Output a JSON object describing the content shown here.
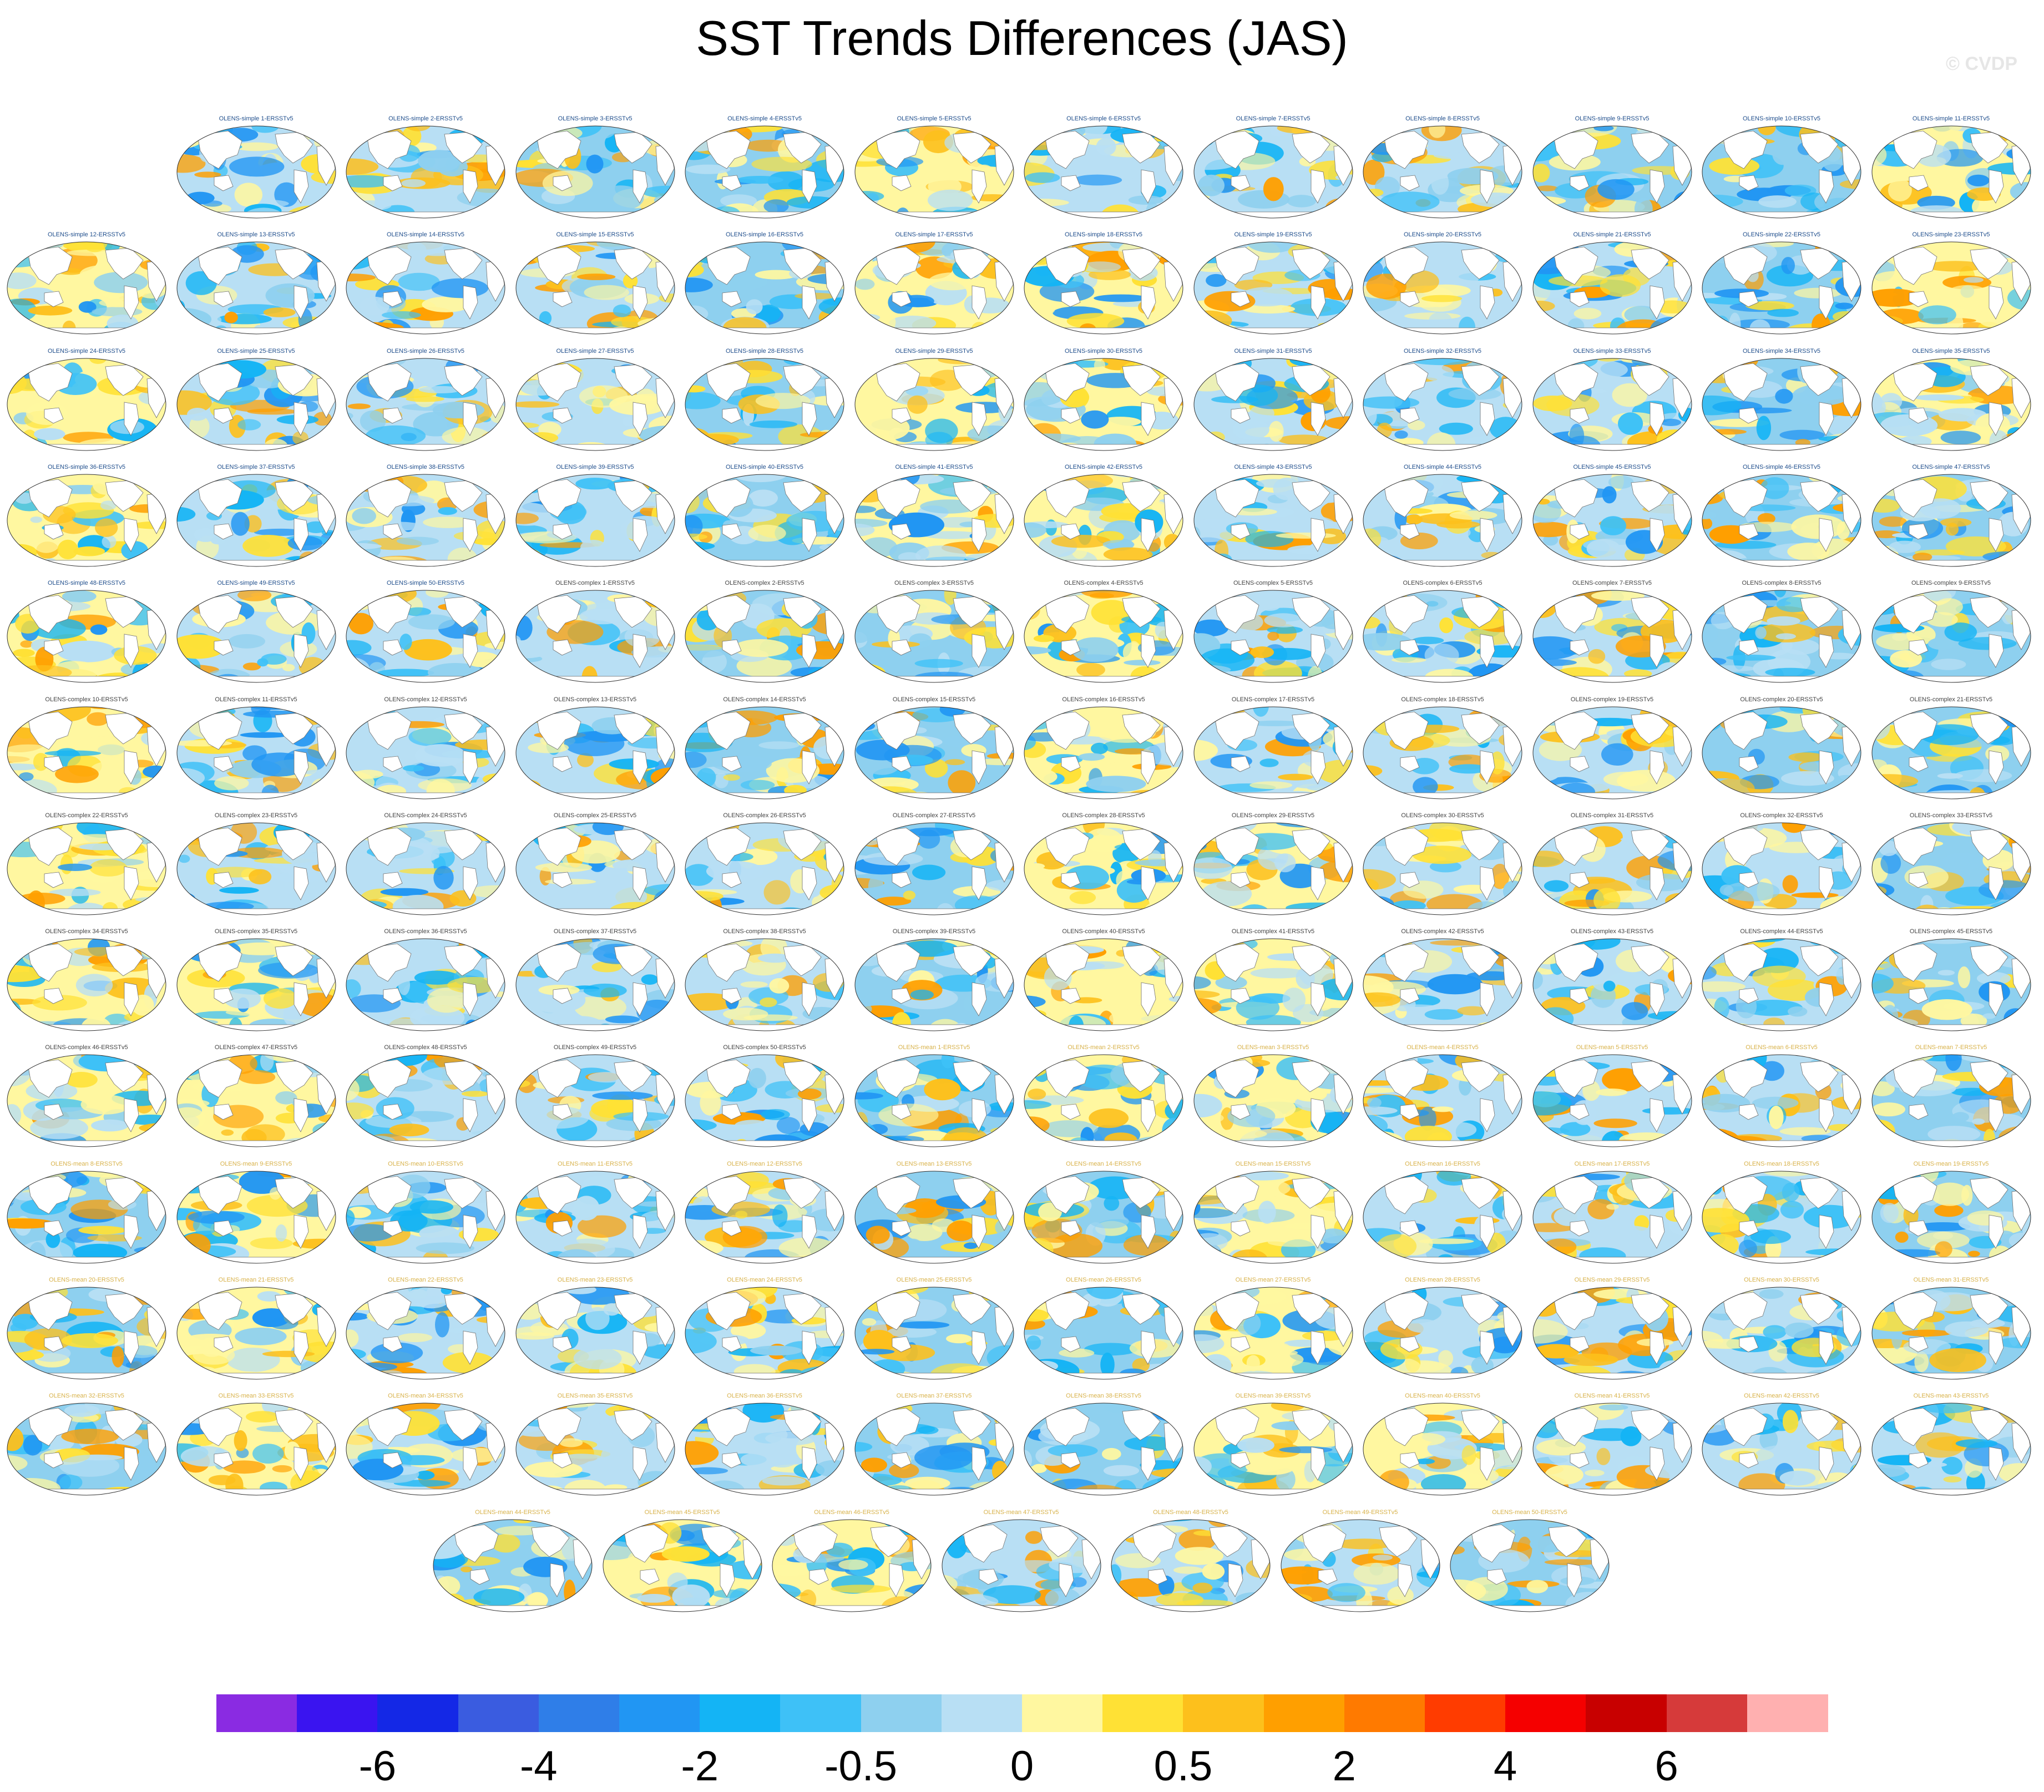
{
  "title": "SST Trends Differences (JAS)",
  "watermark": "© CVDP",
  "colors": {
    "simple_title": "#1f4e8c",
    "complex_title": "#444444",
    "mean_title": "#d8b24a",
    "land": "#ffffff",
    "coast": "#707070"
  },
  "chart_data": {
    "type": "heatmap",
    "description_type": "panel grid of global SST trend difference maps",
    "title": "SST Trends Differences (JAS)",
    "panel_groups": [
      {
        "name": "OLENS-simple",
        "count": 50,
        "suffix": "ERSSTv5"
      },
      {
        "name": "OLENS-complex",
        "count": 50,
        "suffix": "ERSSTv5"
      },
      {
        "name": "OLENS-mean",
        "count": 50,
        "suffix": "ERSSTv5"
      }
    ],
    "panel_titles": [
      "OLENS-simple 1-ERSSTv5",
      "OLENS-simple 2-ERSSTv5",
      "OLENS-simple 3-ERSSTv5",
      "OLENS-simple 4-ERSSTv5",
      "OLENS-simple 5-ERSSTv5",
      "OLENS-simple 6-ERSSTv5",
      "OLENS-simple 7-ERSSTv5",
      "OLENS-simple 8-ERSSTv5",
      "OLENS-simple 9-ERSSTv5",
      "OLENS-simple 10-ERSSTv5",
      "OLENS-simple 11-ERSSTv5",
      "OLENS-simple 12-ERSSTv5",
      "OLENS-simple 13-ERSSTv5",
      "OLENS-simple 14-ERSSTv5",
      "OLENS-simple 15-ERSSTv5",
      "OLENS-simple 16-ERSSTv5",
      "OLENS-simple 17-ERSSTv5",
      "OLENS-simple 18-ERSSTv5",
      "OLENS-simple 19-ERSSTv5",
      "OLENS-simple 20-ERSSTv5",
      "OLENS-simple 21-ERSSTv5",
      "OLENS-simple 22-ERSSTv5",
      "OLENS-simple 23-ERSSTv5",
      "OLENS-simple 24-ERSSTv5",
      "OLENS-simple 25-ERSSTv5",
      "OLENS-simple 26-ERSSTv5",
      "OLENS-simple 27-ERSSTv5",
      "OLENS-simple 28-ERSSTv5",
      "OLENS-simple 29-ERSSTv5",
      "OLENS-simple 30-ERSSTv5",
      "OLENS-simple 31-ERSSTv5",
      "OLENS-simple 32-ERSSTv5",
      "OLENS-simple 33-ERSSTv5",
      "OLENS-simple 34-ERSSTv5",
      "OLENS-simple 35-ERSSTv5",
      "OLENS-simple 36-ERSSTv5",
      "OLENS-simple 37-ERSSTv5",
      "OLENS-simple 38-ERSSTv5",
      "OLENS-simple 39-ERSSTv5",
      "OLENS-simple 40-ERSSTv5",
      "OLENS-simple 41-ERSSTv5",
      "OLENS-simple 42-ERSSTv5",
      "OLENS-simple 43-ERSSTv5",
      "OLENS-simple 44-ERSSTv5",
      "OLENS-simple 45-ERSSTv5",
      "OLENS-simple 46-ERSSTv5",
      "OLENS-simple 47-ERSSTv5",
      "OLENS-simple 48-ERSSTv5",
      "OLENS-simple 49-ERSSTv5",
      "OLENS-simple 50-ERSSTv5",
      "OLENS-complex 1-ERSSTv5",
      "OLENS-complex 2-ERSSTv5",
      "OLENS-complex 3-ERSSTv5",
      "OLENS-complex 4-ERSSTv5",
      "OLENS-complex 5-ERSSTv5",
      "OLENS-complex 6-ERSSTv5",
      "OLENS-complex 7-ERSSTv5",
      "OLENS-complex 8-ERSSTv5",
      "OLENS-complex 9-ERSSTv5",
      "OLENS-complex 10-ERSSTv5",
      "OLENS-complex 11-ERSSTv5",
      "OLENS-complex 12-ERSSTv5",
      "OLENS-complex 13-ERSSTv5",
      "OLENS-complex 14-ERSSTv5",
      "OLENS-complex 15-ERSSTv5",
      "OLENS-complex 16-ERSSTv5",
      "OLENS-complex 17-ERSSTv5",
      "OLENS-complex 18-ERSSTv5",
      "OLENS-complex 19-ERSSTv5",
      "OLENS-complex 20-ERSSTv5",
      "OLENS-complex 21-ERSSTv5",
      "OLENS-complex 22-ERSSTv5",
      "OLENS-complex 23-ERSSTv5",
      "OLENS-complex 24-ERSSTv5",
      "OLENS-complex 25-ERSSTv5",
      "OLENS-complex 26-ERSSTv5",
      "OLENS-complex 27-ERSSTv5",
      "OLENS-complex 28-ERSSTv5",
      "OLENS-complex 29-ERSSTv5",
      "OLENS-complex 30-ERSSTv5",
      "OLENS-complex 31-ERSSTv5",
      "OLENS-complex 32-ERSSTv5",
      "OLENS-complex 33-ERSSTv5",
      "OLENS-complex 34-ERSSTv5",
      "OLENS-complex 35-ERSSTv5",
      "OLENS-complex 36-ERSSTv5",
      "OLENS-complex 37-ERSSTv5",
      "OLENS-complex 38-ERSSTv5",
      "OLENS-complex 39-ERSSTv5",
      "OLENS-complex 40-ERSSTv5",
      "OLENS-complex 41-ERSSTv5",
      "OLENS-complex 42-ERSSTv5",
      "OLENS-complex 43-ERSSTv5",
      "OLENS-complex 44-ERSSTv5",
      "OLENS-complex 45-ERSSTv5",
      "OLENS-complex 46-ERSSTv5",
      "OLENS-complex 47-ERSSTv5",
      "OLENS-complex 48-ERSSTv5",
      "OLENS-complex 49-ERSSTv5",
      "OLENS-complex 50-ERSSTv5",
      "OLENS-mean 1-ERSSTv5",
      "OLENS-mean 2-ERSSTv5",
      "OLENS-mean 3-ERSSTv5",
      "OLENS-mean 4-ERSSTv5",
      "OLENS-mean 5-ERSSTv5",
      "OLENS-mean 6-ERSSTv5",
      "OLENS-mean 7-ERSSTv5",
      "OLENS-mean 8-ERSSTv5",
      "OLENS-mean 9-ERSSTv5",
      "OLENS-mean 10-ERSSTv5",
      "OLENS-mean 11-ERSSTv5",
      "OLENS-mean 12-ERSSTv5",
      "OLENS-mean 13-ERSSTv5",
      "OLENS-mean 14-ERSSTv5",
      "OLENS-mean 15-ERSSTv5",
      "OLENS-mean 16-ERSSTv5",
      "OLENS-mean 17-ERSSTv5",
      "OLENS-mean 18-ERSSTv5",
      "OLENS-mean 19-ERSSTv5",
      "OLENS-mean 20-ERSSTv5",
      "OLENS-mean 21-ERSSTv5",
      "OLENS-mean 22-ERSSTv5",
      "OLENS-mean 23-ERSSTv5",
      "OLENS-mean 24-ERSSTv5",
      "OLENS-mean 25-ERSSTv5",
      "OLENS-mean 26-ERSSTv5",
      "OLENS-mean 27-ERSSTv5",
      "OLENS-mean 28-ERSSTv5",
      "OLENS-mean 29-ERSSTv5",
      "OLENS-mean 30-ERSSTv5",
      "OLENS-mean 31-ERSSTv5",
      "OLENS-mean 32-ERSSTv5",
      "OLENS-mean 33-ERSSTv5",
      "OLENS-mean 34-ERSSTv5",
      "OLENS-mean 35-ERSSTv5",
      "OLENS-mean 36-ERSSTv5",
      "OLENS-mean 37-ERSSTv5",
      "OLENS-mean 38-ERSSTv5",
      "OLENS-mean 39-ERSSTv5",
      "OLENS-mean 40-ERSSTv5",
      "OLENS-mean 41-ERSSTv5",
      "OLENS-mean 42-ERSSTv5",
      "OLENS-mean 43-ERSSTv5",
      "OLENS-mean 44-ERSSTv5",
      "OLENS-mean 45-ERSSTv5",
      "OLENS-mean 46-ERSSTv5",
      "OLENS-mean 47-ERSSTv5",
      "OLENS-mean 48-ERSSTv5",
      "OLENS-mean 49-ERSSTv5",
      "OLENS-mean 50-ERSSTv5"
    ],
    "colorbar": {
      "colors": [
        "#8a2be2",
        "#3a14f0",
        "#1428e6",
        "#3a5ce0",
        "#2f7ee8",
        "#2196f3",
        "#14b4f5",
        "#3ec1f7",
        "#8ed0ef",
        "#b8dff4",
        "#fff7a0",
        "#ffe135",
        "#fdc01c",
        "#ff9f00",
        "#ff7a00",
        "#ff3c00",
        "#f50000",
        "#c80000",
        "#d63a3a",
        "#ffb0b0"
      ],
      "tick_labels": [
        "-6",
        "-4",
        "-2",
        "-0.5",
        "0",
        "0.5",
        "2",
        "4",
        "6"
      ],
      "tick_boundaries": [
        2,
        4,
        6,
        8,
        10,
        12,
        14,
        16,
        18
      ]
    }
  }
}
